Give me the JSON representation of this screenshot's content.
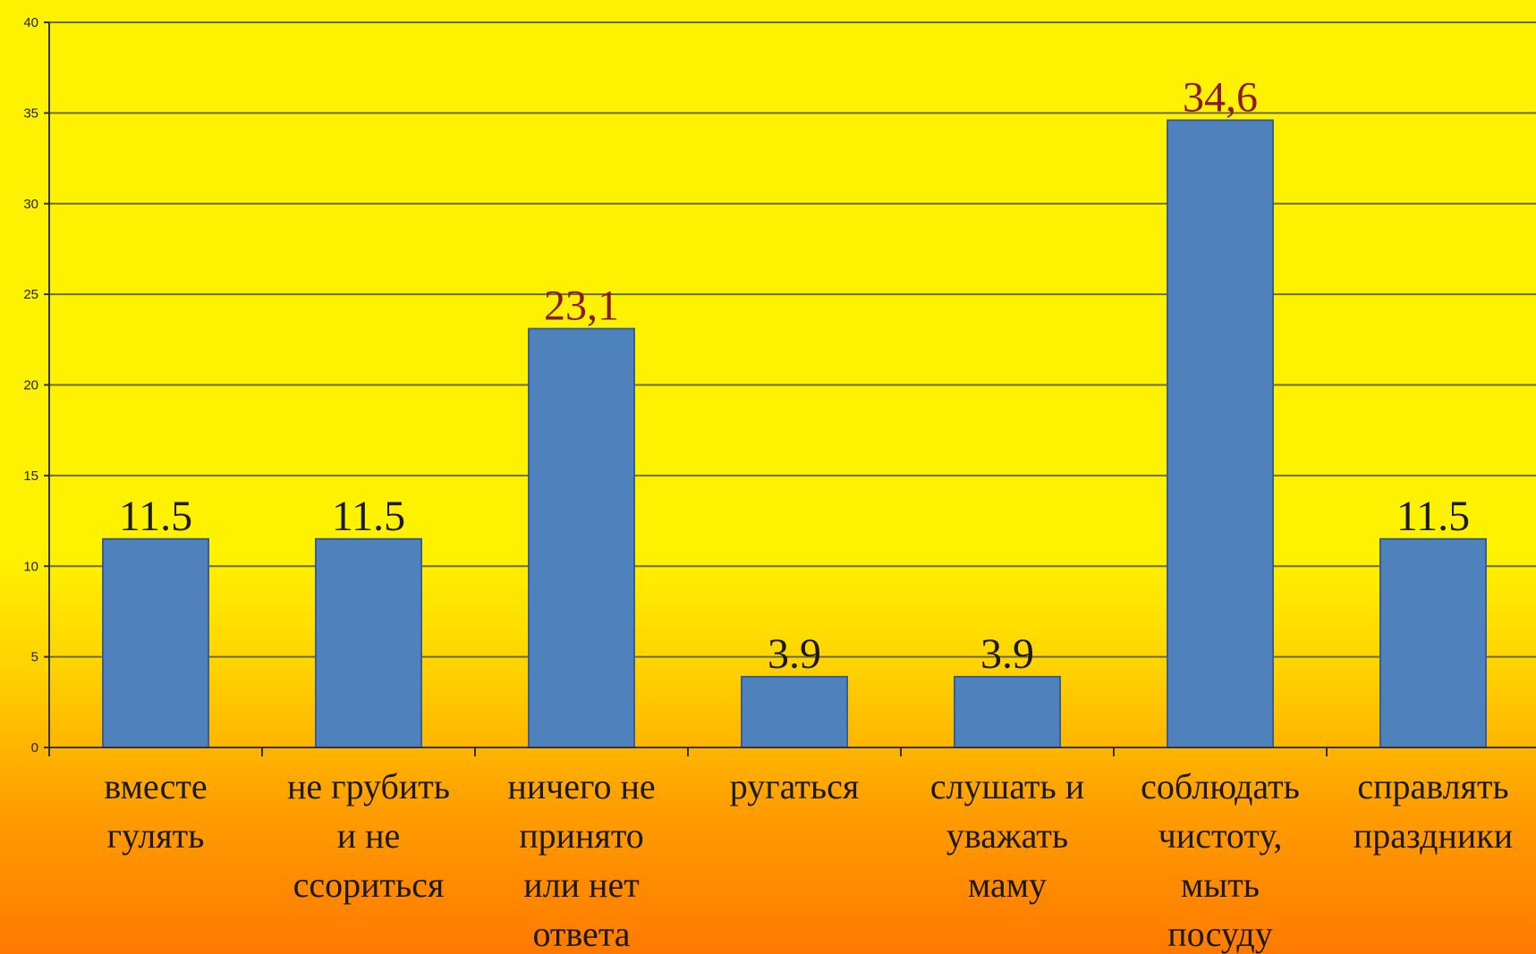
{
  "chart_data": {
    "type": "bar",
    "categories": [
      [
        "вместе",
        "гулять"
      ],
      [
        "не грубить",
        "и не",
        "ссориться"
      ],
      [
        "ничего не",
        "принято",
        "или нет",
        "ответа"
      ],
      [
        "ругаться"
      ],
      [
        "слушать и",
        "уважать",
        "маму"
      ],
      [
        "соблюдать",
        "чистоту,",
        "мыть",
        "посуду"
      ],
      [
        "справлять",
        "праздники"
      ]
    ],
    "values": [
      11.5,
      11.5,
      23.1,
      3.9,
      3.9,
      34.6,
      11.5
    ],
    "data_labels": [
      "11.5",
      "11.5",
      "23,1",
      "3.9",
      "3.9",
      "34,6",
      "11.5"
    ],
    "y_ticks": [
      "0",
      "5",
      "10",
      "15",
      "20",
      "25",
      "30",
      "35",
      "40"
    ],
    "ylim": [
      0,
      40
    ],
    "grid": true,
    "legend": "none",
    "colors": {
      "bar": "#4f81bd",
      "bar_edge": "#3a5f8f",
      "gridline": "#6b6b3a",
      "axis": "#333333",
      "label_dark": "#1a1a1a",
      "label_red": "#8b1a1a"
    }
  }
}
